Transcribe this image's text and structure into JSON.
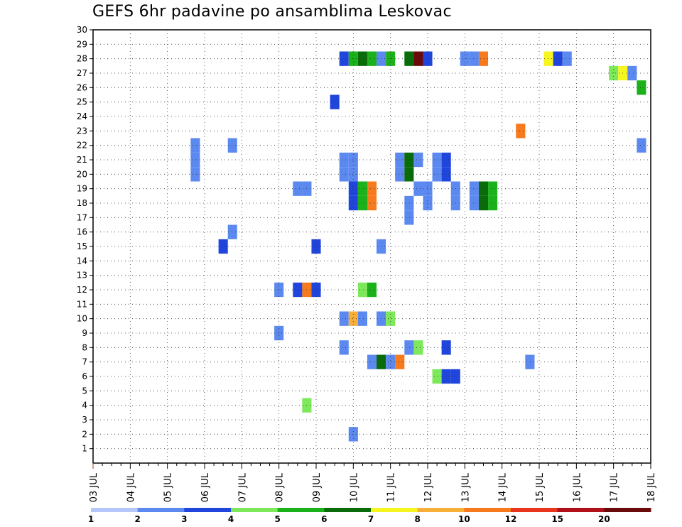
{
  "chart_data": {
    "type": "heatmap",
    "title": "GEFS 6hr padavine po ansamblima Leskovac",
    "xlabel": "",
    "ylabel": "",
    "x_tick_labels": [
      "03 JUL",
      "04 JUL",
      "05 JUL",
      "06 JUL",
      "07 JUL",
      "08 JUL",
      "09 JUL",
      "10 JUL",
      "11 JUL",
      "12 JUL",
      "13 JUL",
      "14 JUL",
      "15 JUL",
      "16 JUL",
      "17 JUL",
      "18 JUL"
    ],
    "y_tick_labels": [
      "1",
      "2",
      "3",
      "4",
      "5",
      "6",
      "7",
      "8",
      "9",
      "10",
      "11",
      "12",
      "13",
      "14",
      "15",
      "16",
      "17",
      "18",
      "19",
      "20",
      "21",
      "22",
      "23",
      "24",
      "25",
      "26",
      "27",
      "28",
      "29",
      "30"
    ],
    "xlim": [
      0,
      60
    ],
    "ylim": [
      0,
      30
    ],
    "grid": true,
    "x_unit": "6-hour steps from 03 JUL 00Z",
    "colorbar": {
      "labels": [
        "1",
        "2",
        "3",
        "4",
        "5",
        "6",
        "7",
        "8",
        "10",
        "12",
        "15",
        "20"
      ],
      "colors": [
        "#b4c6fa",
        "#5c89f0",
        "#1f45dc",
        "#7ce85a",
        "#1bb11b",
        "#0a6b0a",
        "#f7f51f",
        "#f7af3a",
        "#f77a1c",
        "#e8351e",
        "#b0101a",
        "#6b0a0a"
      ]
    },
    "cells": [
      [
        27,
        28,
        2
      ],
      [
        28,
        28,
        4
      ],
      [
        29,
        28,
        5
      ],
      [
        30,
        28,
        4
      ],
      [
        31,
        28,
        1
      ],
      [
        32,
        28,
        4
      ],
      [
        34,
        28,
        5
      ],
      [
        35,
        28,
        11
      ],
      [
        36,
        28,
        2
      ],
      [
        40,
        28,
        1
      ],
      [
        41,
        28,
        1
      ],
      [
        42,
        28,
        8
      ],
      [
        49,
        28,
        6
      ],
      [
        50,
        28,
        2
      ],
      [
        51,
        28,
        1
      ],
      [
        56,
        27,
        3
      ],
      [
        57,
        27,
        6
      ],
      [
        58,
        27,
        1
      ],
      [
        59,
        26,
        4
      ],
      [
        26,
        25,
        2
      ],
      [
        46,
        23,
        8
      ],
      [
        11,
        22,
        1
      ],
      [
        15,
        22,
        1
      ],
      [
        59,
        22,
        1
      ],
      [
        11,
        21,
        1
      ],
      [
        27,
        21,
        1
      ],
      [
        28,
        21,
        1
      ],
      [
        33,
        21,
        1
      ],
      [
        34,
        21,
        5
      ],
      [
        35,
        21,
        1
      ],
      [
        37,
        21,
        1
      ],
      [
        38,
        21,
        2
      ],
      [
        11,
        20,
        1
      ],
      [
        27,
        20,
        1
      ],
      [
        28,
        20,
        1
      ],
      [
        33,
        20,
        1
      ],
      [
        34,
        20,
        5
      ],
      [
        37,
        20,
        1
      ],
      [
        38,
        20,
        2
      ],
      [
        22,
        19,
        1
      ],
      [
        23,
        19,
        1
      ],
      [
        28,
        18,
        2
      ],
      [
        29,
        18,
        4
      ],
      [
        30,
        18,
        8
      ],
      [
        34,
        18,
        1
      ],
      [
        36,
        18,
        1
      ],
      [
        39,
        18,
        1
      ],
      [
        41,
        18,
        1
      ],
      [
        42,
        18,
        5
      ],
      [
        43,
        18,
        4
      ],
      [
        28,
        19,
        2
      ],
      [
        29,
        19,
        4
      ],
      [
        30,
        19,
        8
      ],
      [
        35,
        19,
        1
      ],
      [
        36,
        19,
        1
      ],
      [
        39,
        19,
        1
      ],
      [
        41,
        19,
        1
      ],
      [
        42,
        19,
        5
      ],
      [
        43,
        19,
        4
      ],
      [
        34,
        17,
        1
      ],
      [
        15,
        16,
        1
      ],
      [
        14,
        15,
        2
      ],
      [
        24,
        15,
        2
      ],
      [
        31,
        15,
        1
      ],
      [
        20,
        12,
        1
      ],
      [
        22,
        12,
        2
      ],
      [
        23,
        12,
        8
      ],
      [
        24,
        12,
        2
      ],
      [
        29,
        12,
        3
      ],
      [
        30,
        12,
        4
      ],
      [
        27,
        10,
        1
      ],
      [
        28,
        10,
        7
      ],
      [
        29,
        10,
        1
      ],
      [
        31,
        10,
        1
      ],
      [
        32,
        10,
        3
      ],
      [
        20,
        9,
        1
      ],
      [
        27,
        8,
        1
      ],
      [
        34,
        8,
        1
      ],
      [
        35,
        8,
        3
      ],
      [
        38,
        8,
        2
      ],
      [
        30,
        7,
        1
      ],
      [
        31,
        7,
        5
      ],
      [
        32,
        7,
        1
      ],
      [
        33,
        7,
        8
      ],
      [
        47,
        7,
        1
      ],
      [
        37,
        6,
        3
      ],
      [
        38,
        6,
        2
      ],
      [
        39,
        6,
        2
      ],
      [
        23,
        4,
        3
      ],
      [
        28,
        2,
        1
      ]
    ]
  }
}
